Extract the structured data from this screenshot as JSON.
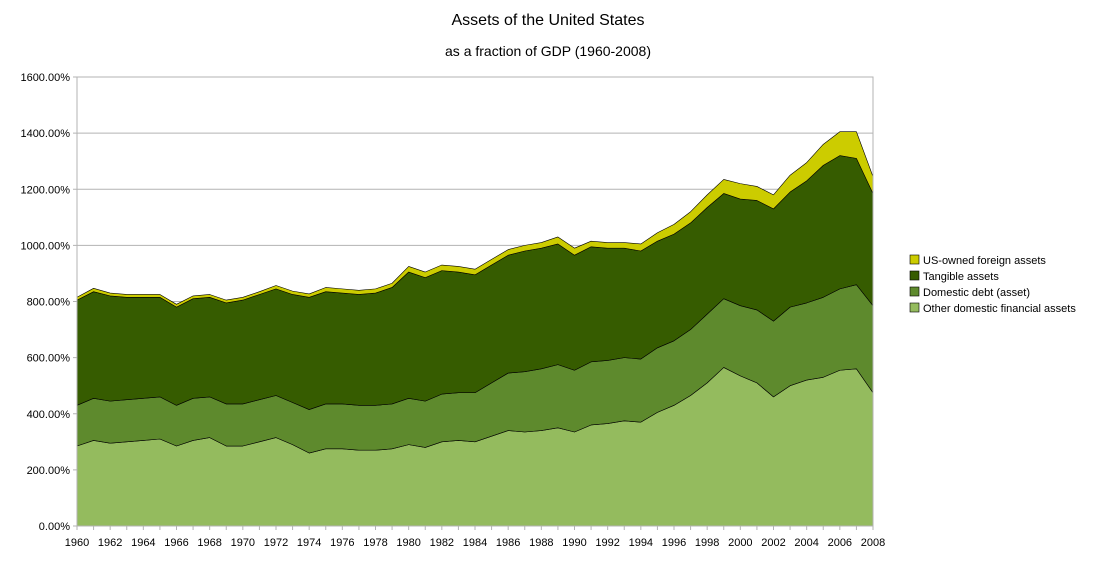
{
  "chart_data": {
    "type": "area",
    "stacked": true,
    "title": "Assets of the United States",
    "subtitle": "as a fraction of GDP (1960-2008)",
    "xlabel": "",
    "ylabel": "",
    "ylim": [
      0,
      1600
    ],
    "y_ticks": [
      "0.00%",
      "200.00%",
      "400.00%",
      "600.00%",
      "800.00%",
      "1000.00%",
      "1200.00%",
      "1400.00%",
      "1600.00%"
    ],
    "x_tick_labels": [
      "1960",
      "1962",
      "1964",
      "1966",
      "1968",
      "1970",
      "1972",
      "1974",
      "1976",
      "1978",
      "1980",
      "1982",
      "1984",
      "1986",
      "1988",
      "1990",
      "1992",
      "1994",
      "1996",
      "1998",
      "2000",
      "2002",
      "2004",
      "2006",
      "2008"
    ],
    "grid": "horizontal",
    "legend_position": "right",
    "x": [
      1960,
      1961,
      1962,
      1963,
      1964,
      1965,
      1966,
      1967,
      1968,
      1969,
      1970,
      1971,
      1972,
      1973,
      1974,
      1975,
      1976,
      1977,
      1978,
      1979,
      1980,
      1981,
      1982,
      1983,
      1984,
      1985,
      1986,
      1987,
      1988,
      1989,
      1990,
      1991,
      1992,
      1993,
      1994,
      1995,
      1996,
      1997,
      1998,
      1999,
      2000,
      2001,
      2002,
      2003,
      2004,
      2005,
      2006,
      2007,
      2008
    ],
    "series": [
      {
        "name": "Other domestic financial assets",
        "color": "#94bb5e",
        "values": [
          285,
          305,
          295,
          300,
          305,
          310,
          285,
          305,
          315,
          285,
          285,
          300,
          315,
          290,
          260,
          275,
          275,
          270,
          270,
          275,
          290,
          280,
          300,
          305,
          300,
          320,
          340,
          335,
          340,
          350,
          335,
          360,
          365,
          375,
          370,
          405,
          430,
          465,
          510,
          565,
          535,
          510,
          460,
          500,
          520,
          530,
          555,
          560,
          475
        ]
      },
      {
        "name": "Domestic debt (asset)",
        "color": "#5e8a2d",
        "values": [
          145,
          150,
          150,
          150,
          150,
          150,
          145,
          150,
          145,
          150,
          150,
          150,
          150,
          150,
          155,
          160,
          160,
          160,
          160,
          160,
          165,
          165,
          170,
          170,
          175,
          190,
          205,
          215,
          220,
          225,
          220,
          225,
          225,
          225,
          225,
          230,
          230,
          235,
          245,
          245,
          250,
          260,
          270,
          280,
          275,
          285,
          290,
          300,
          310
        ]
      },
      {
        "name": "Tangible assets",
        "color": "#365c00",
        "values": [
          375,
          380,
          375,
          365,
          360,
          355,
          350,
          355,
          355,
          360,
          370,
          375,
          380,
          385,
          400,
          400,
          395,
          395,
          400,
          415,
          450,
          440,
          440,
          430,
          420,
          420,
          420,
          430,
          430,
          430,
          410,
          410,
          400,
          390,
          385,
          380,
          380,
          380,
          380,
          375,
          380,
          390,
          400,
          410,
          435,
          470,
          475,
          450,
          400
        ]
      },
      {
        "name": "US-owned foreign assets",
        "color": "#cccc00",
        "values": [
          10,
          12,
          10,
          10,
          10,
          10,
          10,
          10,
          10,
          10,
          10,
          10,
          12,
          12,
          12,
          15,
          15,
          15,
          15,
          15,
          20,
          20,
          20,
          20,
          20,
          20,
          20,
          20,
          20,
          25,
          25,
          20,
          20,
          20,
          25,
          30,
          35,
          40,
          45,
          50,
          55,
          50,
          50,
          60,
          65,
          75,
          85,
          95,
          60
        ]
      }
    ]
  }
}
